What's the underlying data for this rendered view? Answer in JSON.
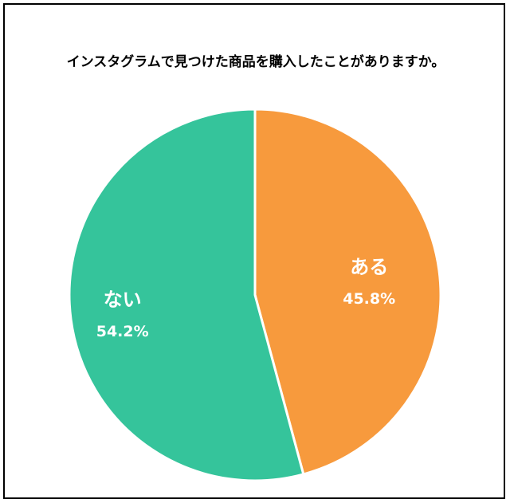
{
  "chart_data": {
    "type": "pie",
    "title": "インスタグラムで見つけた商品を購入したことがありますか。",
    "categories": [
      "ある",
      "ない"
    ],
    "values": [
      45.8,
      54.2
    ],
    "value_labels": [
      "45.8%",
      "54.2%"
    ],
    "colors": [
      "#f79a3d",
      "#35c49b"
    ],
    "start": "12 o'clock, clockwise"
  }
}
